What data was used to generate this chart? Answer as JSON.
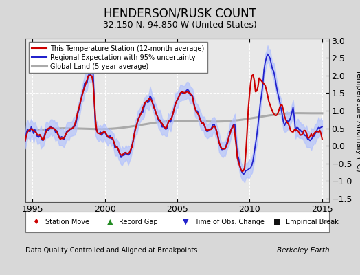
{
  "title": "HENDERSON/RUSK COUNT",
  "subtitle": "32.150 N, 94.850 W (United States)",
  "xlabel_left": "Data Quality Controlled and Aligned at Breakpoints",
  "xlabel_right": "Berkeley Earth",
  "ylabel": "Temperature Anomaly (°C)",
  "xlim": [
    1994.5,
    2015.5
  ],
  "ylim": [
    -1.6,
    3.05
  ],
  "yticks": [
    -1.5,
    -1.0,
    -0.5,
    0.0,
    0.5,
    1.0,
    1.5,
    2.0,
    2.5,
    3.0
  ],
  "xticks": [
    1995,
    2000,
    2005,
    2010,
    2015
  ],
  "bg_color": "#d8d8d8",
  "plot_bg_color": "#e8e8e8",
  "title_fontsize": 12,
  "subtitle_fontsize": 9,
  "tick_fontsize": 9,
  "ylabel_fontsize": 8
}
